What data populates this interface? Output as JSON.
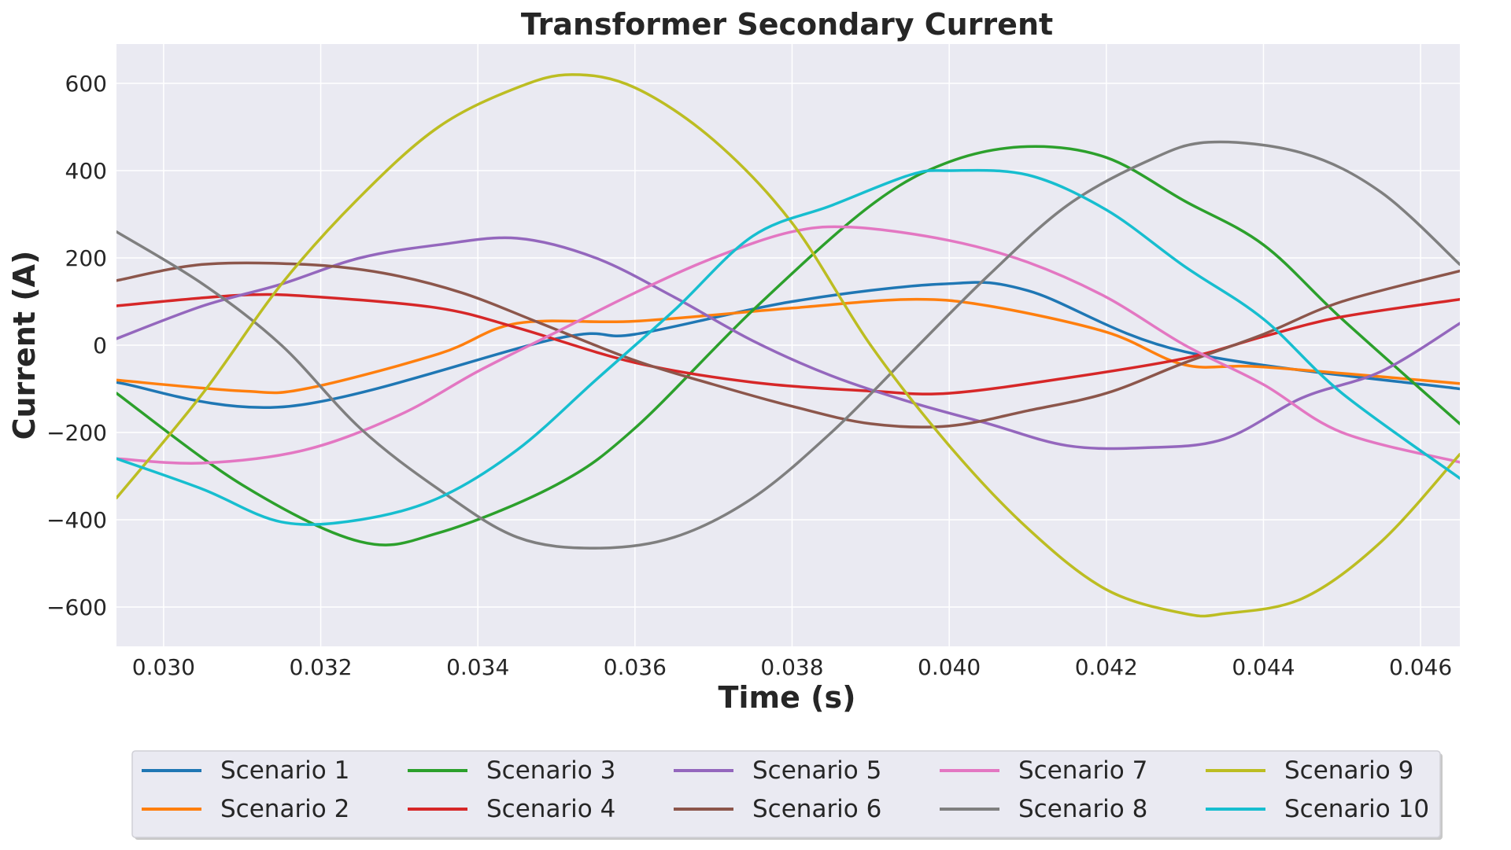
{
  "chart_data": {
    "type": "line",
    "title": "Transformer Secondary Current",
    "xlabel": "Time (s)",
    "ylabel": "Current (A)",
    "xlim": [
      0.0294,
      0.0465
    ],
    "ylim": [
      -690,
      690
    ],
    "xticks": [
      0.03,
      0.032,
      0.034,
      0.036,
      0.038,
      0.04,
      0.042,
      0.044,
      0.046
    ],
    "xtick_labels": [
      "0.030",
      "0.032",
      "0.034",
      "0.036",
      "0.038",
      "0.040",
      "0.042",
      "0.044",
      "0.046"
    ],
    "yticks": [
      -600,
      -400,
      -200,
      0,
      200,
      400,
      600
    ],
    "ytick_labels": [
      "−600",
      "−400",
      "−200",
      "0",
      "200",
      "400",
      "600"
    ],
    "grid": true,
    "background": "#eaeaf2",
    "legend_position": "bottom-outside",
    "legend_columns": 5,
    "series": [
      {
        "name": "Scenario 1",
        "color": "#1f77b4",
        "x": [
          0.0294,
          0.0316,
          0.035,
          0.036,
          0.038,
          0.0399,
          0.041,
          0.043,
          0.0465
        ],
        "y": [
          -85,
          -140,
          15,
          25,
          100,
          140,
          125,
          -15,
          -100
        ]
      },
      {
        "name": "Scenario 2",
        "color": "#ff7f0e",
        "x": [
          0.0294,
          0.031,
          0.0318,
          0.0335,
          0.0345,
          0.036,
          0.038,
          0.0395,
          0.0405,
          0.042,
          0.043,
          0.044,
          0.0465
        ],
        "y": [
          -80,
          -105,
          -100,
          -20,
          50,
          55,
          85,
          105,
          90,
          30,
          -45,
          -50,
          -88
        ]
      },
      {
        "name": "Scenario 3",
        "color": "#2ca02c",
        "x": [
          0.0294,
          0.031,
          0.0325,
          0.0335,
          0.035,
          0.036,
          0.0375,
          0.039,
          0.04,
          0.041,
          0.042,
          0.043,
          0.044,
          0.045,
          0.0465
        ],
        "y": [
          -110,
          -320,
          -450,
          -430,
          -320,
          -190,
          80,
          320,
          420,
          455,
          430,
          330,
          230,
          60,
          -180
        ]
      },
      {
        "name": "Scenario 4",
        "color": "#d62728",
        "x": [
          0.0294,
          0.031,
          0.032,
          0.0335,
          0.0345,
          0.036,
          0.0375,
          0.039,
          0.04,
          0.0415,
          0.043,
          0.044,
          0.045,
          0.0465
        ],
        "y": [
          90,
          115,
          110,
          85,
          40,
          -40,
          -85,
          -105,
          -110,
          -75,
          -30,
          20,
          65,
          105
        ]
      },
      {
        "name": "Scenario 5",
        "color": "#9467bd",
        "x": [
          0.0294,
          0.0305,
          0.0315,
          0.0325,
          0.0335,
          0.0345,
          0.0355,
          0.0365,
          0.0375,
          0.0385,
          0.0395,
          0.0405,
          0.0415,
          0.0425,
          0.0435,
          0.0445,
          0.0455,
          0.0465
        ],
        "y": [
          15,
          90,
          140,
          200,
          230,
          245,
          200,
          110,
          10,
          -70,
          -130,
          -180,
          -230,
          -235,
          -215,
          -120,
          -60,
          50
        ]
      },
      {
        "name": "Scenario 6",
        "color": "#8c564b",
        "x": [
          0.0294,
          0.0305,
          0.0318,
          0.0328,
          0.0338,
          0.0348,
          0.036,
          0.037,
          0.038,
          0.039,
          0.04,
          0.041,
          0.042,
          0.043,
          0.044,
          0.045,
          0.0465
        ],
        "y": [
          148,
          185,
          185,
          165,
          120,
          50,
          -35,
          -90,
          -140,
          -180,
          -185,
          -150,
          -110,
          -40,
          25,
          100,
          170
        ]
      },
      {
        "name": "Scenario 7",
        "color": "#e377c2",
        "x": [
          0.0294,
          0.0305,
          0.0318,
          0.033,
          0.034,
          0.035,
          0.036,
          0.037,
          0.038,
          0.0388,
          0.04,
          0.041,
          0.042,
          0.043,
          0.044,
          0.045,
          0.0465
        ],
        "y": [
          -260,
          -270,
          -240,
          -160,
          -60,
          30,
          120,
          200,
          260,
          270,
          240,
          190,
          110,
          0,
          -90,
          -200,
          -268
        ]
      },
      {
        "name": "Scenario 8",
        "color": "#7f7f7f",
        "x": [
          0.0294,
          0.0305,
          0.0315,
          0.0325,
          0.0335,
          0.0345,
          0.0355,
          0.0365,
          0.0375,
          0.0385,
          0.0395,
          0.0405,
          0.0415,
          0.0425,
          0.0433,
          0.0445,
          0.0455,
          0.0465
        ],
        "y": [
          260,
          140,
          0,
          -190,
          -330,
          -440,
          -465,
          -440,
          -350,
          -200,
          -20,
          160,
          320,
          420,
          465,
          440,
          350,
          185
        ]
      },
      {
        "name": "Scenario 9",
        "color": "#bcbd22",
        "x": [
          0.0294,
          0.0305,
          0.0315,
          0.0325,
          0.0335,
          0.0345,
          0.0352,
          0.036,
          0.037,
          0.038,
          0.039,
          0.04,
          0.041,
          0.042,
          0.043,
          0.0435,
          0.0445,
          0.0455,
          0.0465
        ],
        "y": [
          -350,
          -110,
          140,
          340,
          500,
          590,
          620,
          590,
          470,
          280,
          0,
          -230,
          -420,
          -560,
          -615,
          -615,
          -580,
          -450,
          -250
        ]
      },
      {
        "name": "Scenario 10",
        "color": "#17becf",
        "x": [
          0.0294,
          0.0305,
          0.0315,
          0.0325,
          0.0335,
          0.0345,
          0.0355,
          0.0365,
          0.0375,
          0.0385,
          0.0395,
          0.04,
          0.041,
          0.042,
          0.043,
          0.044,
          0.045,
          0.0465
        ],
        "y": [
          -260,
          -330,
          -405,
          -400,
          -350,
          -240,
          -80,
          80,
          250,
          320,
          390,
          400,
          390,
          310,
          180,
          60,
          -110,
          -305
        ]
      }
    ]
  }
}
